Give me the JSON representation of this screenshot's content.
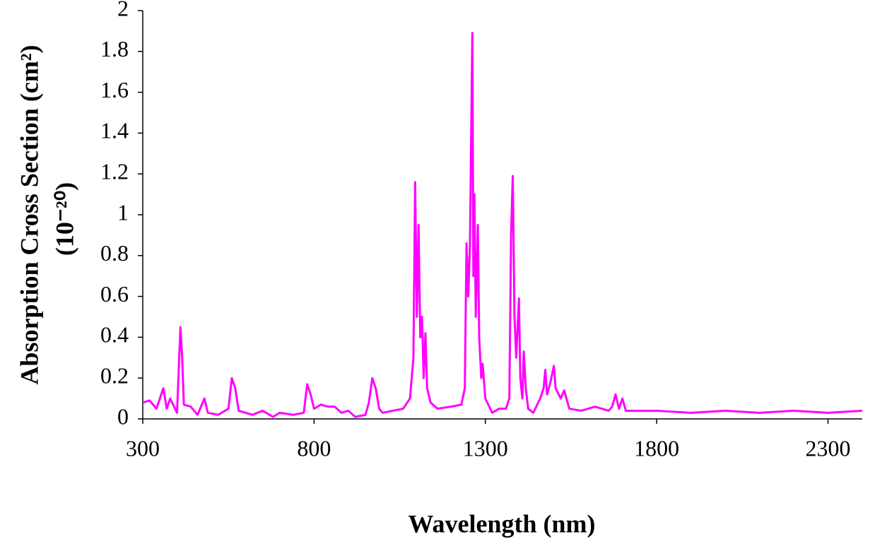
{
  "chart_data": {
    "type": "line",
    "x_label": "Wavelength (nm)",
    "y_label": [
      "Absorption Cross Section (cm²)",
      "(10⁻²⁰)"
    ],
    "color": "#ff00ff",
    "xlim": [
      300,
      2400
    ],
    "xticks": [
      300,
      800,
      1300,
      1800,
      2300
    ],
    "ylim": [
      0,
      2
    ],
    "yticks": [
      0,
      0.2,
      0.4,
      0.6,
      0.8,
      1,
      1.2,
      1.4,
      1.6,
      1.8,
      2
    ],
    "x": [
      300,
      320,
      340,
      360,
      370,
      380,
      400,
      410,
      415,
      420,
      440,
      460,
      480,
      490,
      520,
      550,
      560,
      570,
      580,
      620,
      650,
      680,
      700,
      740,
      770,
      780,
      790,
      800,
      820,
      840,
      860,
      880,
      900,
      920,
      950,
      960,
      970,
      980,
      990,
      1000,
      1030,
      1060,
      1080,
      1090,
      1095,
      1100,
      1105,
      1110,
      1115,
      1120,
      1125,
      1130,
      1140,
      1160,
      1200,
      1230,
      1240,
      1245,
      1250,
      1255,
      1262,
      1265,
      1268,
      1272,
      1278,
      1282,
      1288,
      1292,
      1300,
      1320,
      1340,
      1360,
      1370,
      1375,
      1380,
      1385,
      1390,
      1398,
      1402,
      1408,
      1412,
      1418,
      1425,
      1440,
      1460,
      1470,
      1475,
      1480,
      1490,
      1500,
      1505,
      1520,
      1530,
      1545,
      1580,
      1620,
      1660,
      1670,
      1680,
      1690,
      1700,
      1710,
      1750,
      1800,
      1900,
      2000,
      2100,
      2200,
      2300,
      2400
    ],
    "values": [
      0.08,
      0.09,
      0.05,
      0.15,
      0.05,
      0.1,
      0.03,
      0.45,
      0.3,
      0.07,
      0.06,
      0.02,
      0.1,
      0.03,
      0.02,
      0.05,
      0.2,
      0.15,
      0.04,
      0.02,
      0.04,
      0.01,
      0.03,
      0.02,
      0.03,
      0.17,
      0.12,
      0.05,
      0.07,
      0.06,
      0.06,
      0.03,
      0.04,
      0.01,
      0.02,
      0.08,
      0.2,
      0.15,
      0.05,
      0.03,
      0.04,
      0.05,
      0.1,
      0.3,
      1.16,
      0.5,
      0.95,
      0.4,
      0.5,
      0.2,
      0.42,
      0.15,
      0.08,
      0.05,
      0.06,
      0.07,
      0.15,
      0.86,
      0.6,
      0.85,
      1.89,
      0.7,
      1.1,
      0.5,
      0.95,
      0.4,
      0.2,
      0.27,
      0.1,
      0.03,
      0.05,
      0.05,
      0.1,
      0.9,
      1.19,
      0.5,
      0.3,
      0.59,
      0.2,
      0.1,
      0.33,
      0.15,
      0.05,
      0.03,
      0.1,
      0.15,
      0.24,
      0.12,
      0.18,
      0.26,
      0.15,
      0.1,
      0.14,
      0.05,
      0.04,
      0.06,
      0.04,
      0.06,
      0.12,
      0.05,
      0.1,
      0.04,
      0.04,
      0.04,
      0.03,
      0.04,
      0.03,
      0.04,
      0.03,
      0.04
    ]
  }
}
